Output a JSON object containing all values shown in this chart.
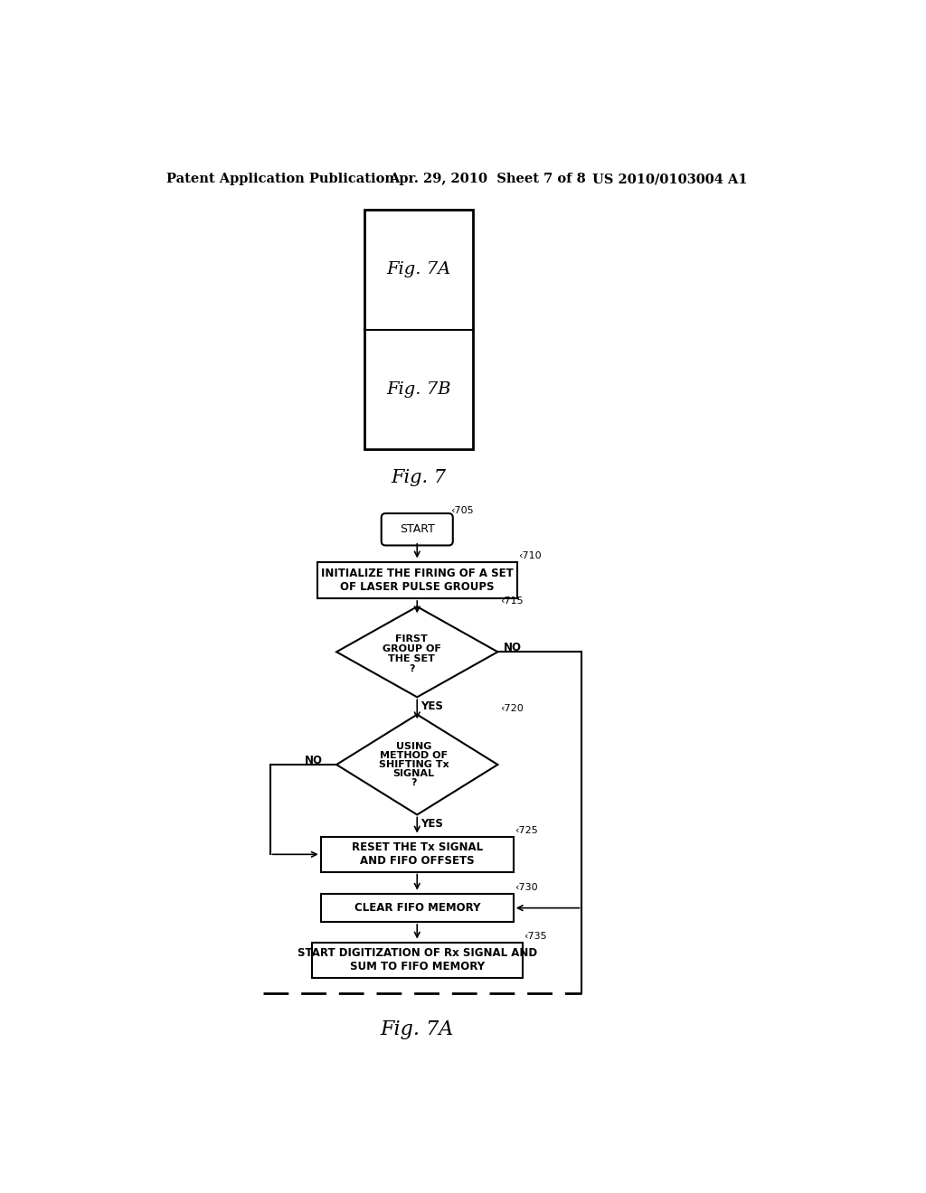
{
  "header_left": "Patent Application Publication",
  "header_mid": "Apr. 29, 2010  Sheet 7 of 8",
  "header_right": "US 2010/0103004 A1",
  "bg_color": "#ffffff",
  "node_705": "START",
  "node_710": "INITIALIZE THE FIRING OF A SET\nOF LASER PULSE GROUPS",
  "node_715_text": "FIRST\nGROUP OF\nTHE SET\n?",
  "node_720_text": "USING\nMETHOD OF\nSHIFTING Tx\nSIGNAL\n?",
  "node_725": "RESET THE Tx SIGNAL\nAND FIFO OFFSETS",
  "node_730": "CLEAR FIFO MEMORY",
  "node_735": "START DIGITIZATION OF Rx SIGNAL AND\nSUM TO FIFO MEMORY",
  "label_705": "705",
  "label_710": "710",
  "label_715": "715",
  "label_720": "720",
  "label_725": "725",
  "label_730": "730",
  "label_735": "735",
  "fig7_caption": "Fig. 7",
  "fig7a_caption": "Fig. 7A",
  "fig7b_inner": "Fig. 7B",
  "fig7a_inner": "Fig. 7A"
}
